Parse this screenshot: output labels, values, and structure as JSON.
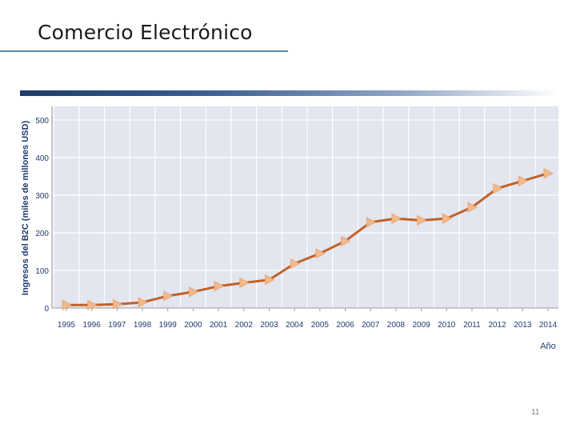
{
  "slide": {
    "title": "Comercio Electrónico",
    "page_number": "11"
  },
  "colors": {
    "title_rule": "#5b87a8",
    "plot_background": "#e3e5ef",
    "line": "#c0622a",
    "marker": "#f2b98a",
    "text": "#1f3a6e"
  },
  "chart_data": {
    "type": "line",
    "title": "",
    "xlabel": "Año",
    "ylabel": "Ingresos del B2C (miles de millones USD)",
    "ylim": [
      0,
      500
    ],
    "yticks": [
      0,
      100,
      200,
      300,
      400,
      500
    ],
    "categories": [
      "1995",
      "1996",
      "1997",
      "1998",
      "1999",
      "2000",
      "2001",
      "2002",
      "2003",
      "2004",
      "2005",
      "2006",
      "2007",
      "2008",
      "2009",
      "2010",
      "2011",
      "2012",
      "2013",
      "2014"
    ],
    "series": [
      {
        "name": "Ingresos del B2C",
        "values": [
          8,
          8,
          10,
          15,
          32,
          43,
          58,
          67,
          75,
          118,
          145,
          178,
          228,
          238,
          233,
          238,
          268,
          318,
          338,
          358
        ]
      }
    ],
    "grid": true
  }
}
